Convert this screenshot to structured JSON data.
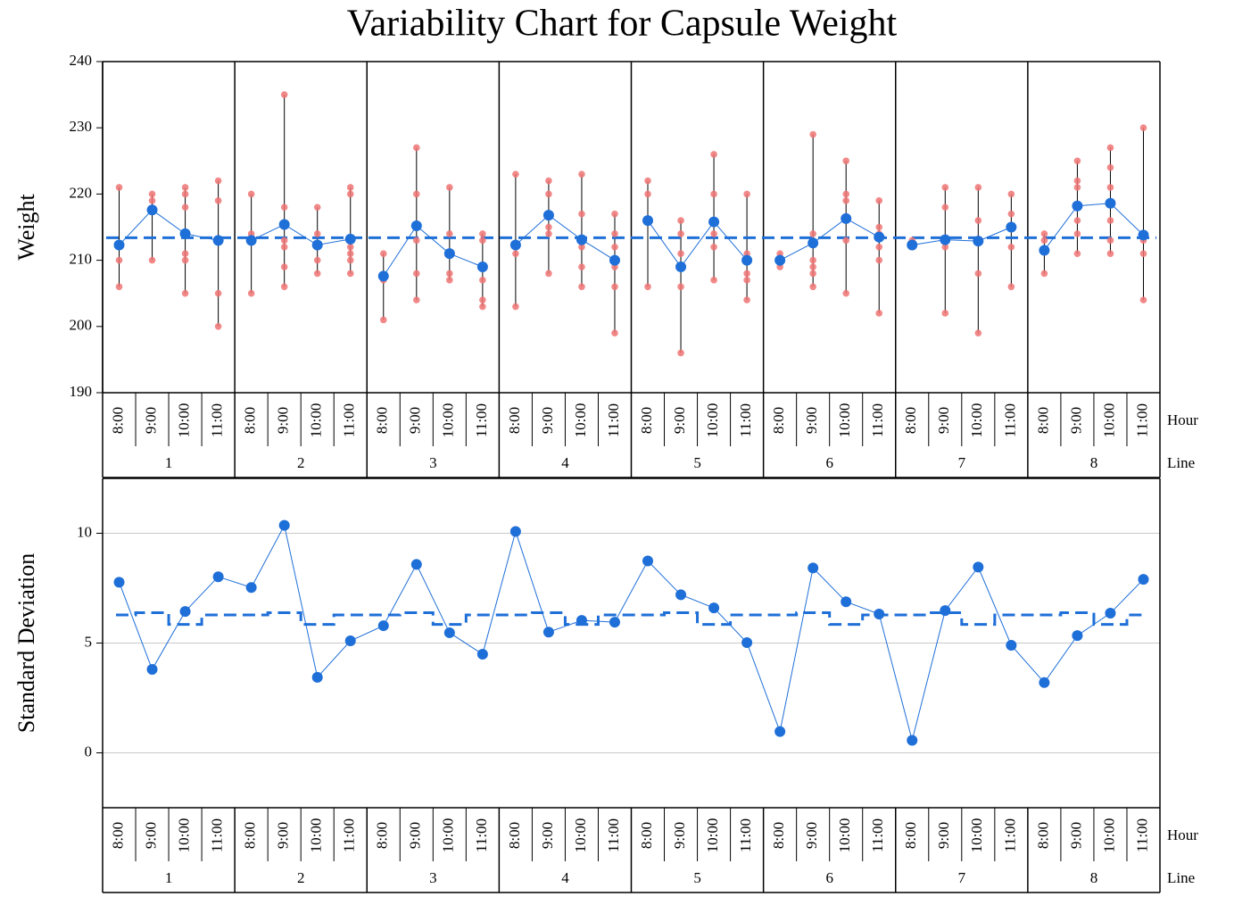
{
  "chart_data": [
    {
      "type": "variability",
      "title": "Variability Chart for Capsule Weight",
      "y_label": "Weight",
      "ylim": [
        190,
        240
      ],
      "yticks": [
        190,
        200,
        210,
        220,
        230,
        240
      ],
      "group_dividers": true,
      "hour_title": "Hour",
      "line_title": "Line",
      "hours": [
        "8:00",
        "9:00",
        "10:00",
        "11:00"
      ],
      "lines": [
        "1",
        "2",
        "3",
        "4",
        "5",
        "6",
        "7",
        "8"
      ],
      "raw": {
        "color": "#f07474",
        "values": [
          [
            221,
            210,
            206
          ],
          [
            220,
            219,
            210
          ],
          [
            221,
            220,
            218,
            211,
            210,
            205
          ],
          [
            222,
            219,
            205,
            200
          ],
          [
            220,
            214,
            213,
            205
          ],
          [
            235,
            218,
            213,
            212,
            209,
            206
          ],
          [
            218,
            214,
            212,
            210,
            208
          ],
          [
            221,
            220,
            212,
            211,
            210,
            208
          ],
          [
            211,
            207,
            201
          ],
          [
            227,
            220,
            213,
            208,
            204
          ],
          [
            221,
            214,
            211,
            208,
            207
          ],
          [
            214,
            213,
            207,
            204,
            203
          ],
          [
            223,
            211,
            203
          ],
          [
            222,
            220,
            215,
            214,
            208
          ],
          [
            223,
            217,
            213,
            212,
            209,
            206
          ],
          [
            217,
            214,
            212,
            209,
            206,
            199
          ],
          [
            222,
            220,
            206
          ],
          [
            216,
            214,
            211,
            206,
            196
          ],
          [
            226,
            220,
            214,
            212,
            207
          ],
          [
            220,
            211,
            210,
            208,
            207,
            204
          ],
          [
            211,
            210,
            209
          ],
          [
            229,
            214,
            210,
            209,
            208,
            206
          ],
          [
            225,
            220,
            219,
            213,
            205
          ],
          [
            219,
            215,
            214,
            212,
            210,
            202
          ],
          [
            213,
            212
          ],
          [
            221,
            218,
            213,
            212,
            202
          ],
          [
            221,
            216,
            213,
            208,
            199
          ],
          [
            220,
            217,
            212,
            206
          ],
          [
            214,
            213,
            208
          ],
          [
            225,
            222,
            221,
            216,
            214,
            211
          ],
          [
            227,
            224,
            221,
            216,
            213,
            211
          ],
          [
            230,
            213,
            211,
            204
          ]
        ]
      },
      "means": {
        "color": "#1f6fd8",
        "values": [
          212.3,
          217.6,
          214,
          213,
          213,
          215.4,
          212.3,
          213.2,
          207.6,
          215.2,
          211,
          209,
          212.3,
          216.8,
          213.1,
          210,
          216,
          209,
          215.8,
          210,
          210,
          212.6,
          216.3,
          213.5,
          212.3,
          213.1,
          212.9,
          215,
          211.5,
          218.2,
          218.6,
          213.8
        ]
      },
      "grand_mean": 213.4
    },
    {
      "type": "line",
      "y_label": "Standard Deviation",
      "ylim": [
        -2.5,
        12.5
      ],
      "yticks": [
        0,
        5,
        10
      ],
      "grid": true,
      "hour_title": "Hour",
      "line_title": "Line",
      "hours": [
        "8:00",
        "9:00",
        "10:00",
        "11:00"
      ],
      "lines": [
        "1",
        "2",
        "3",
        "4",
        "5",
        "6",
        "7",
        "8"
      ],
      "color": "#1f6fd8",
      "values": [
        7.77,
        3.8,
        6.44,
        8.02,
        7.53,
        10.36,
        3.44,
        5.1,
        5.79,
        8.58,
        5.47,
        4.49,
        10.08,
        5.5,
        6.03,
        5.95,
        8.74,
        7.2,
        6.6,
        5.02,
        0.97,
        8.42,
        6.88,
        6.32,
        0.57,
        6.48,
        8.46,
        4.9,
        3.2,
        5.34,
        6.36,
        7.9
      ],
      "reference": [
        6.28,
        6.38,
        5.85,
        6.28,
        6.28,
        6.38,
        5.85,
        6.28,
        6.28,
        6.38,
        5.85,
        6.28,
        6.28,
        6.38,
        5.85,
        6.28,
        6.28,
        6.38,
        5.85,
        6.28,
        6.28,
        6.38,
        5.85,
        6.28,
        6.28,
        6.38,
        5.85,
        6.28,
        6.28,
        6.38,
        5.85,
        6.28
      ]
    }
  ]
}
